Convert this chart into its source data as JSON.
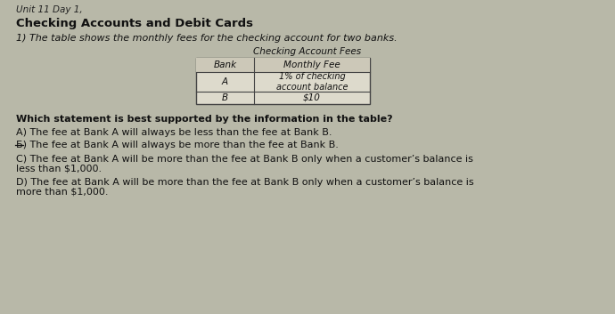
{
  "bg_color": "#b8b8a8",
  "title_line1": "Checking Accounts and Debit Cards",
  "subtitle": "1) The table shows the monthly fees for the checking account for two banks.",
  "table_title": "Checking Account Fees",
  "table_headers": [
    "Bank",
    "Monthly Fee"
  ],
  "table_rows": [
    [
      "A",
      "1% of checking\naccount balance"
    ],
    [
      "B",
      "$10"
    ]
  ],
  "question": "Which statement is best supported by the information in the table?",
  "answer_A": "A) The fee at Bank A will always be less than the fee at Bank B.",
  "answer_B_prefix": "Б)",
  "answer_B_rest": " The fee at Bank A will always be more than the fee at Bank B.",
  "answer_C_line1": "C) The fee at Bank A will be more than the fee at Bank B only when a customer’s balance is",
  "answer_C_line2": "less than $1,000.",
  "answer_D_line1": "D) The fee at Bank A will be more than the fee at Bank B only when a customer’s balance is",
  "answer_D_line2": "more than $1,000.",
  "unit_text": "Unit 11 Day 1,",
  "font_size_title": 9.5,
  "font_size_body": 8.0,
  "font_size_unit": 7.5,
  "font_size_table": 7.5
}
